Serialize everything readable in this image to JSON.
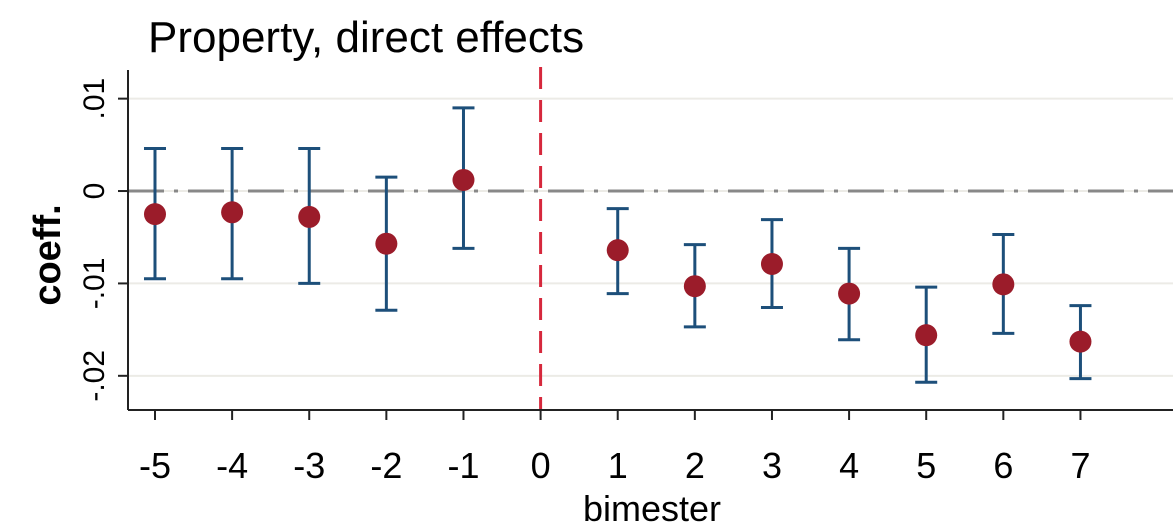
{
  "chart_data": {
    "type": "scatter",
    "title": "Property, direct effects",
    "xlabel": "bimester",
    "ylabel": "coeff.",
    "x_ticks": [
      -5,
      -4,
      -3,
      -2,
      -1,
      0,
      1,
      2,
      3,
      4,
      5,
      6,
      7
    ],
    "x_tick_labels": [
      "-5",
      "-4",
      "-3",
      "-2",
      "-1",
      "0",
      "1",
      "2",
      "3",
      "4",
      "5",
      "6",
      "7"
    ],
    "y_ticks": [
      0.01,
      0,
      -0.01,
      -0.02
    ],
    "y_tick_labels": [
      ".01",
      "0",
      "-.01",
      "-.02"
    ],
    "xlim": [
      -5.35,
      8.2
    ],
    "ylim": [
      -0.0237,
      0.0131
    ],
    "points": [
      {
        "x": -5,
        "y": -0.0025,
        "lo": -0.0095,
        "hi": 0.0046
      },
      {
        "x": -4,
        "y": -0.0023,
        "lo": -0.0095,
        "hi": 0.0046
      },
      {
        "x": -3,
        "y": -0.0028,
        "lo": -0.01,
        "hi": 0.0046
      },
      {
        "x": -2,
        "y": -0.0057,
        "lo": -0.0129,
        "hi": 0.0015
      },
      {
        "x": -1,
        "y": 0.0012,
        "lo": -0.0062,
        "hi": 0.009
      },
      {
        "x": 1,
        "y": -0.0064,
        "lo": -0.0111,
        "hi": -0.0019
      },
      {
        "x": 2,
        "y": -0.0103,
        "lo": -0.0147,
        "hi": -0.0058
      },
      {
        "x": 3,
        "y": -0.0079,
        "lo": -0.0126,
        "hi": -0.0031
      },
      {
        "x": 4,
        "y": -0.0111,
        "lo": -0.0161,
        "hi": -0.0062
      },
      {
        "x": 5,
        "y": -0.0156,
        "lo": -0.0207,
        "hi": -0.0104
      },
      {
        "x": 6,
        "y": -0.0101,
        "lo": -0.0154,
        "hi": -0.0047
      },
      {
        "x": 7,
        "y": -0.0163,
        "lo": -0.0203,
        "hi": -0.0124
      }
    ],
    "reference_lines": {
      "vertical_x": 0,
      "horizontal_y": 0
    },
    "grid": true,
    "colors": {
      "marker": "#9b1c2a",
      "error_bar": "#1d4f7a",
      "event_line": "#d6283c",
      "zero_line": "#888888",
      "grid": "#ecebe6",
      "axis": "#222222"
    }
  }
}
